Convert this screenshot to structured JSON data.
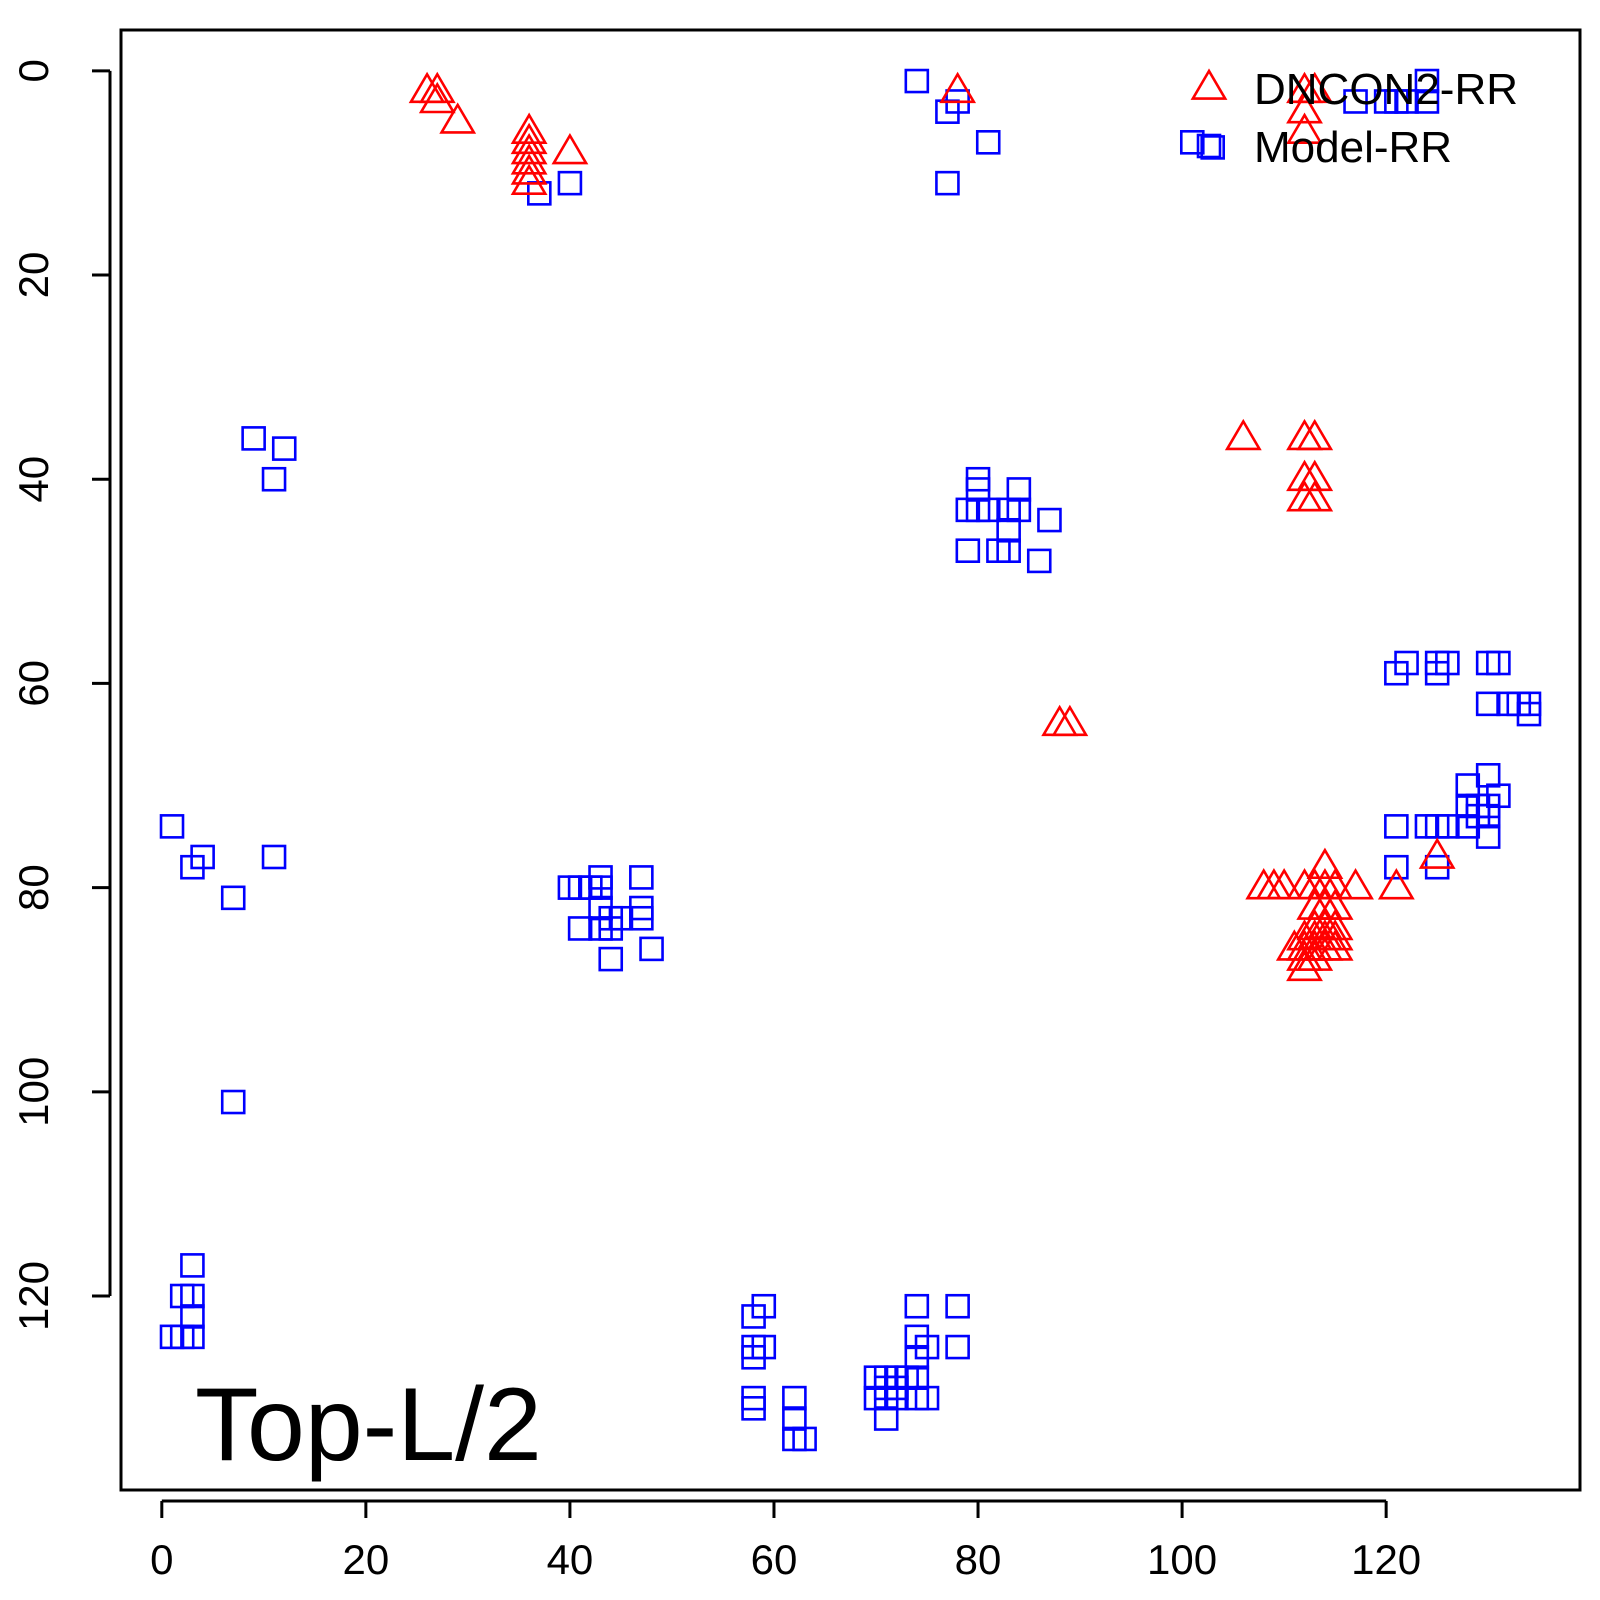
{
  "chart_data": {
    "type": "scatter",
    "title": "",
    "xlabel": "",
    "ylabel": "",
    "annotation": "Top-L/2",
    "xlim": [
      -4,
      139
    ],
    "ylim": [
      -4,
      139
    ],
    "y_inverted": true,
    "grid": false,
    "legend_position": "top-right",
    "x_ticks": [
      0,
      20,
      40,
      60,
      80,
      100,
      120
    ],
    "y_ticks": [
      0,
      20,
      40,
      60,
      80,
      100,
      120
    ],
    "series": [
      {
        "name": "DNCON2-RR",
        "marker": "triangle",
        "color": "#ff0000",
        "points": [
          [
            26,
            2
          ],
          [
            27,
            2
          ],
          [
            27,
            3
          ],
          [
            29,
            5
          ],
          [
            36,
            6
          ],
          [
            36,
            7
          ],
          [
            36,
            8
          ],
          [
            36,
            9
          ],
          [
            36,
            10
          ],
          [
            36,
            11
          ],
          [
            40,
            8
          ],
          [
            78,
            2
          ],
          [
            112,
            2
          ],
          [
            113,
            2
          ],
          [
            112,
            4
          ],
          [
            112,
            6
          ],
          [
            106,
            36
          ],
          [
            112,
            36
          ],
          [
            113,
            36
          ],
          [
            112,
            40
          ],
          [
            113,
            40
          ],
          [
            112,
            42
          ],
          [
            113,
            42
          ],
          [
            88,
            64
          ],
          [
            89,
            64
          ],
          [
            108,
            80
          ],
          [
            109,
            80
          ],
          [
            110,
            80
          ],
          [
            112,
            80
          ],
          [
            113,
            80
          ],
          [
            114,
            80
          ],
          [
            115,
            80
          ],
          [
            117,
            80
          ],
          [
            114,
            78
          ],
          [
            113,
            82
          ],
          [
            114,
            82
          ],
          [
            115,
            82
          ],
          [
            113,
            84
          ],
          [
            114,
            84
          ],
          [
            115,
            84
          ],
          [
            112,
            85
          ],
          [
            113,
            85
          ],
          [
            114,
            85
          ],
          [
            115,
            85
          ],
          [
            111,
            86
          ],
          [
            112,
            86
          ],
          [
            113,
            86
          ],
          [
            114,
            86
          ],
          [
            115,
            86
          ],
          [
            112,
            87
          ],
          [
            113,
            87
          ],
          [
            112,
            88
          ],
          [
            121,
            80
          ],
          [
            125,
            77
          ]
        ]
      },
      {
        "name": "Model-RR",
        "marker": "square",
        "color": "#0000ff",
        "points": [
          [
            74,
            1
          ],
          [
            77,
            4
          ],
          [
            78,
            3
          ],
          [
            81,
            7
          ],
          [
            77,
            11
          ],
          [
            37,
            12
          ],
          [
            40,
            11
          ],
          [
            101,
            7
          ],
          [
            103,
            7.5
          ],
          [
            117,
            3
          ],
          [
            120,
            3
          ],
          [
            121,
            3
          ],
          [
            122,
            3
          ],
          [
            124,
            3
          ],
          [
            124,
            1
          ],
          [
            9,
            36
          ],
          [
            12,
            37
          ],
          [
            11,
            40
          ],
          [
            80,
            40
          ],
          [
            80,
            41
          ],
          [
            80,
            43
          ],
          [
            79,
            43
          ],
          [
            81,
            43
          ],
          [
            83,
            43
          ],
          [
            84,
            43
          ],
          [
            84,
            41
          ],
          [
            83,
            45
          ],
          [
            87,
            44
          ],
          [
            79,
            47
          ],
          [
            82,
            47
          ],
          [
            83,
            47
          ],
          [
            86,
            48
          ],
          [
            121,
            59
          ],
          [
            122,
            58
          ],
          [
            125,
            58
          ],
          [
            126,
            58
          ],
          [
            125,
            59
          ],
          [
            130,
            58
          ],
          [
            131,
            58
          ],
          [
            130,
            62
          ],
          [
            132,
            62
          ],
          [
            133,
            62
          ],
          [
            134,
            62
          ],
          [
            134,
            63
          ],
          [
            128,
            70
          ],
          [
            130,
            69
          ],
          [
            128,
            72
          ],
          [
            129,
            72
          ],
          [
            130,
            72
          ],
          [
            128,
            74
          ],
          [
            129,
            73
          ],
          [
            130,
            75
          ],
          [
            130,
            73
          ],
          [
            131,
            71
          ],
          [
            124,
            74
          ],
          [
            125,
            74
          ],
          [
            126,
            74
          ],
          [
            121,
            74
          ],
          [
            121,
            78
          ],
          [
            125,
            78
          ],
          [
            1,
            74
          ],
          [
            3,
            78
          ],
          [
            4,
            77
          ],
          [
            11,
            77
          ],
          [
            7,
            81
          ],
          [
            7,
            101
          ],
          [
            40,
            80
          ],
          [
            41,
            80
          ],
          [
            42,
            80
          ],
          [
            43,
            80
          ],
          [
            43,
            79
          ],
          [
            43,
            82
          ],
          [
            44,
            83
          ],
          [
            45,
            83
          ],
          [
            47,
            79
          ],
          [
            47,
            82
          ],
          [
            47,
            83
          ],
          [
            41,
            84
          ],
          [
            43,
            84
          ],
          [
            44,
            84
          ],
          [
            44,
            87
          ],
          [
            48,
            86
          ],
          [
            3,
            117
          ],
          [
            2,
            120
          ],
          [
            3,
            120
          ],
          [
            3,
            122
          ],
          [
            1,
            124
          ],
          [
            2,
            124
          ],
          [
            3,
            124
          ],
          [
            58,
            122
          ],
          [
            59,
            121
          ],
          [
            58,
            125
          ],
          [
            59,
            125
          ],
          [
            58,
            126
          ],
          [
            58,
            130
          ],
          [
            58,
            131
          ],
          [
            62,
            130
          ],
          [
            62,
            132
          ],
          [
            62,
            134
          ],
          [
            63,
            134
          ],
          [
            74,
            121
          ],
          [
            78,
            121
          ],
          [
            74,
            124
          ],
          [
            75,
            125
          ],
          [
            78,
            125
          ],
          [
            74,
            126
          ],
          [
            70,
            128
          ],
          [
            71,
            128
          ],
          [
            72,
            128
          ],
          [
            73,
            128
          ],
          [
            74,
            128
          ],
          [
            71,
            129
          ],
          [
            72,
            129
          ],
          [
            70,
            130
          ],
          [
            71,
            130
          ],
          [
            72,
            130
          ],
          [
            74,
            130
          ],
          [
            75,
            130
          ],
          [
            71,
            132
          ]
        ]
      }
    ]
  }
}
